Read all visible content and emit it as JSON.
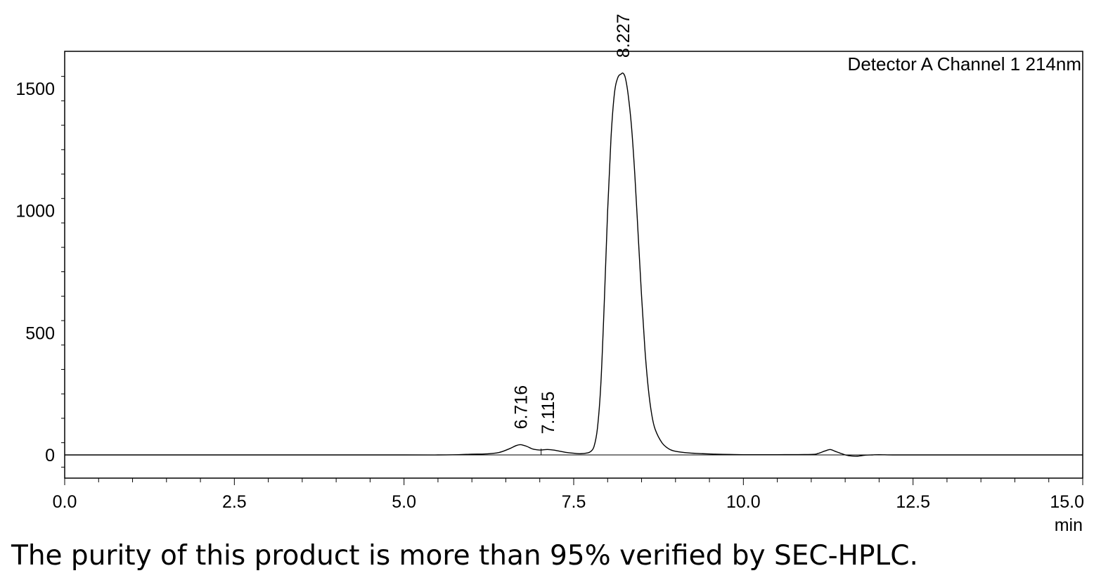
{
  "chart_data": {
    "type": "line",
    "title": "",
    "xlabel": "min",
    "ylabel": "",
    "xlim": [
      0.0,
      15.0
    ],
    "ylim": [
      -95,
      1650
    ],
    "x_ticks": [
      0.0,
      2.5,
      5.0,
      7.5,
      10.0,
      12.5,
      15.0
    ],
    "x_tick_labels": [
      "0.0",
      "2.5",
      "5.0",
      "7.5",
      "10.0",
      "12.5",
      "15.0"
    ],
    "y_ticks": [
      0,
      500,
      1000,
      1500
    ],
    "y_tick_labels": [
      "0",
      "500",
      "1000",
      "1500"
    ],
    "legend": "Detector A Channel 1 214nm",
    "legend_position": "top-right",
    "grid": false,
    "line_color": "#000000",
    "series": [
      {
        "name": "Detector A Channel 1 214nm",
        "x": [
          0.0,
          1.0,
          2.0,
          3.0,
          4.0,
          5.0,
          5.5,
          5.8,
          6.0,
          6.2,
          6.4,
          6.55,
          6.65,
          6.716,
          6.8,
          6.9,
          7.0,
          7.05,
          7.115,
          7.2,
          7.3,
          7.4,
          7.5,
          7.6,
          7.7,
          7.75,
          7.8,
          7.85,
          7.9,
          7.95,
          8.0,
          8.05,
          8.1,
          8.15,
          8.2,
          8.227,
          8.26,
          8.3,
          8.35,
          8.4,
          8.45,
          8.5,
          8.55,
          8.6,
          8.65,
          8.7,
          8.8,
          8.9,
          9.0,
          9.2,
          9.4,
          9.6,
          9.8,
          10.0,
          10.5,
          11.0,
          11.1,
          11.2,
          11.28,
          11.35,
          11.45,
          11.55,
          11.68,
          11.8,
          11.9,
          12.0,
          12.2,
          12.5,
          13.0,
          14.0,
          15.0
        ],
        "y": [
          0,
          0,
          0,
          0,
          0,
          0,
          0,
          1,
          3,
          4,
          10,
          25,
          38,
          42,
          36,
          24,
          20,
          21,
          22,
          20,
          15,
          10,
          7,
          5,
          8,
          14,
          35,
          110,
          290,
          620,
          1000,
          1300,
          1480,
          1545,
          1560,
          1563,
          1545,
          1480,
          1350,
          1150,
          900,
          650,
          430,
          270,
          165,
          105,
          50,
          25,
          15,
          8,
          5,
          3,
          2,
          1,
          1,
          2,
          6,
          16,
          22,
          15,
          5,
          -3,
          -5,
          -1,
          0,
          1,
          0,
          0,
          0,
          0,
          0
        ]
      }
    ],
    "annotations": [
      {
        "x": 6.716,
        "y": 42,
        "text": "6.716"
      },
      {
        "x": 7.115,
        "y": 22,
        "text": "7.115"
      },
      {
        "x": 8.227,
        "y": 1563,
        "text": "8.227"
      }
    ]
  },
  "caption": "The purity of this product is more than 95% verified by SEC-HPLC."
}
